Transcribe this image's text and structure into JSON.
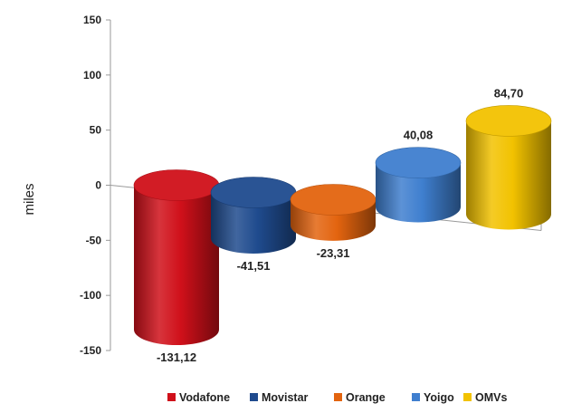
{
  "chart_data": {
    "type": "bar",
    "style": "3d-cylinder",
    "ylabel": "miles",
    "xlabel": "",
    "ylim": [
      -150,
      150
    ],
    "yticks": [
      150,
      100,
      50,
      0,
      -50,
      -100,
      -150
    ],
    "ytick_labels": [
      "150",
      "100",
      "50",
      "0",
      "-50",
      "-100",
      "-150"
    ],
    "categories": [
      "Vodafone",
      "Movistar",
      "Orange",
      "Yoigo",
      "OMVs"
    ],
    "values": [
      -131.12,
      -41.51,
      -23.31,
      40.08,
      84.7
    ],
    "data_labels": [
      "-131,12",
      "-41,51",
      "-23,31",
      "40,08",
      "84,70"
    ],
    "colors": [
      "#d0101a",
      "#1f4b8e",
      "#e3640f",
      "#3f7fcf",
      "#f2c200"
    ],
    "legend": {
      "placement": "bottom",
      "entries": [
        "Vodafone",
        "Movistar",
        "Orange",
        "Yoigo",
        "OMVs"
      ]
    },
    "grid": false
  }
}
